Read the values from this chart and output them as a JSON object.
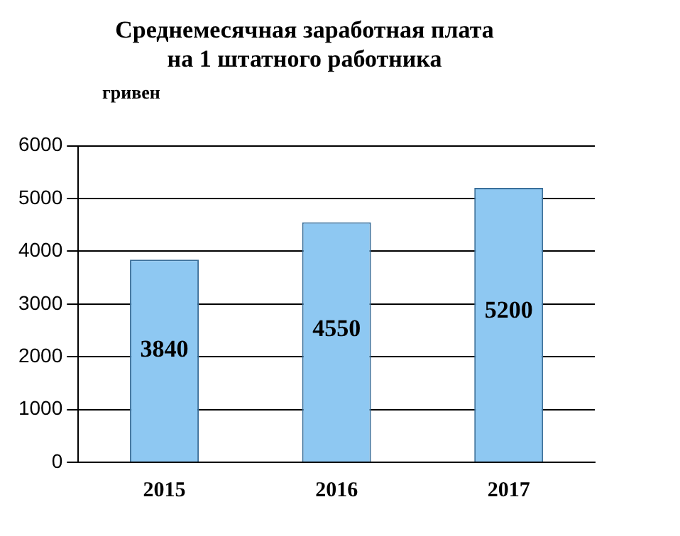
{
  "chart_data": {
    "type": "bar",
    "title": "Среднемесячная заработная плата\nна 1 штатного работника",
    "ylabel": "гривен",
    "categories": [
      "2015",
      "2016",
      "2017"
    ],
    "values": [
      3840,
      4550,
      5200
    ],
    "color": "#8ec8f2",
    "ylim": [
      0,
      6000
    ],
    "yticks": [
      0,
      1000,
      2000,
      3000,
      4000,
      5000,
      6000
    ],
    "grid": "y",
    "legend": false,
    "data_labels": true
  }
}
